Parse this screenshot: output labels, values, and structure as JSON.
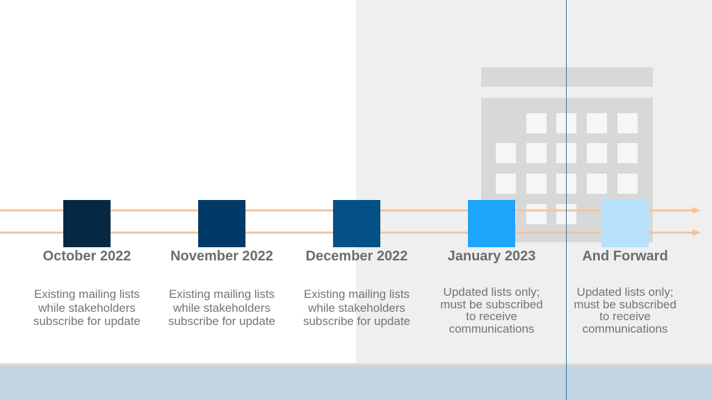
{
  "colors": {
    "arrow": "#f3c39d",
    "marker_1": "#062845",
    "marker_2": "#023a67",
    "marker_3": "#035186",
    "marker_4": "#1ea4fb",
    "marker_5": "#b7e0fc",
    "calendar": "#d8d8d8",
    "label_text": "#6c6c6c",
    "description_text": "#737373"
  },
  "icons": {
    "background": "calendar-icon"
  },
  "timeline": {
    "milestones": [
      {
        "label": "October 2022",
        "description": "Existing mailing lists\nwhile stakeholders\nsubscribe for update"
      },
      {
        "label": "November 2022",
        "description": "Existing mailing lists\nwhile stakeholders\nsubscribe for update"
      },
      {
        "label": "December 2022",
        "description": "Existing mailing lists\nwhile stakeholders\nsubscribe for update"
      },
      {
        "label": "January 2023",
        "description": "Updated lists only;\nmust be subscribed\nto receive\ncommunications"
      },
      {
        "label": "And Forward",
        "description": "Updated lists only;\nmust be subscribed\nto receive\ncommunications"
      }
    ]
  }
}
